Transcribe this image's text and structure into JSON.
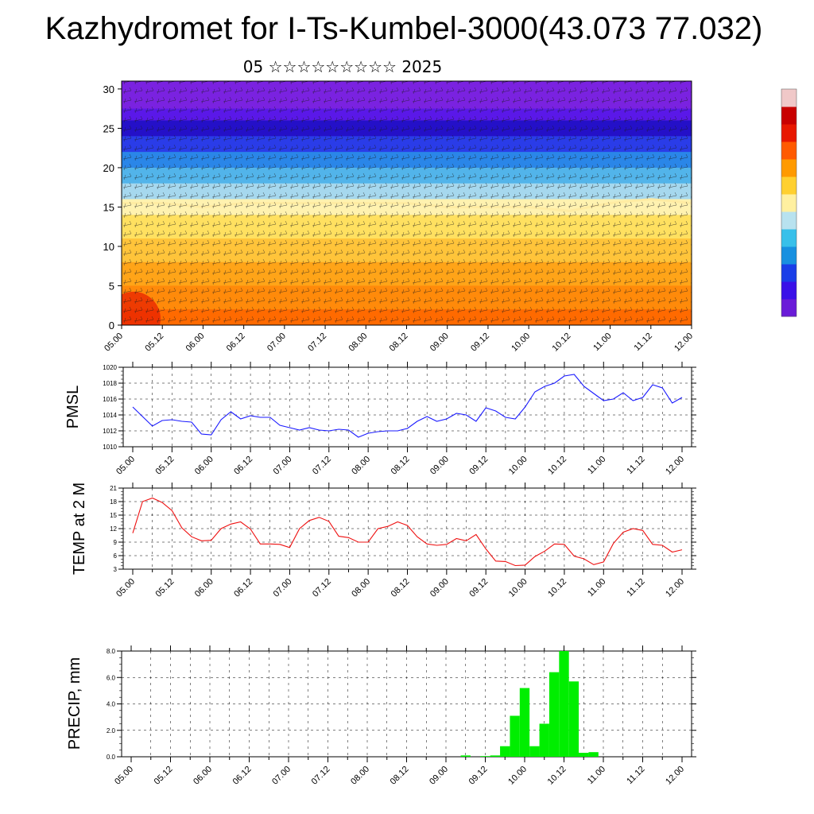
{
  "title": "Kazhydromet for I-Ts-Kumbel-3000(43.073 77.032)",
  "subtitle": "05 ☆☆☆☆☆☆☆☆☆ 2025",
  "time_labels": [
    "05.00",
    "05.12",
    "06.00",
    "06.12",
    "07.00",
    "07.12",
    "08.00",
    "08.12",
    "09.00",
    "09.12",
    "10.00",
    "10.12",
    "11.00",
    "11.12",
    "12.00"
  ],
  "colorbar": {
    "colors": [
      "#6a1bd8",
      "#3a10e8",
      "#1a3ee8",
      "#1890e0",
      "#38c0ea",
      "#b8e2ef",
      "#fff0a0",
      "#ffd030",
      "#ff9a00",
      "#ff5a00",
      "#e81800",
      "#c80000",
      "#f0c8c8"
    ]
  },
  "chart_data": [
    {
      "type": "heatmap",
      "title": "",
      "yticks": [
        0,
        5,
        10,
        15,
        20,
        25,
        30
      ],
      "ylim": [
        0,
        31
      ],
      "xlim": [
        0,
        168
      ],
      "x_tick_labels": [
        "05.00",
        "05.12",
        "06.00",
        "06.12",
        "07.00",
        "07.12",
        "08.00",
        "08.12",
        "09.00",
        "09.12",
        "10.00",
        "10.12",
        "11.00",
        "11.12",
        "12.00"
      ],
      "color_levels": [
        {
          "top": 31,
          "color": "#7a22e0"
        },
        {
          "top": 27.5,
          "color": "#5a18e8"
        },
        {
          "top": 26,
          "color": "#2410c8"
        },
        {
          "top": 24,
          "color": "#2a3ce8"
        },
        {
          "top": 22,
          "color": "#2a86e8"
        },
        {
          "top": 20,
          "color": "#52b4ea"
        },
        {
          "top": 18,
          "color": "#a6d8ee"
        },
        {
          "top": 16,
          "color": "#fff2b0"
        },
        {
          "top": 14,
          "color": "#ffe060"
        },
        {
          "top": 11,
          "color": "#ffc43a"
        },
        {
          "top": 8,
          "color": "#ffa418"
        },
        {
          "top": 5,
          "color": "#ff8a0a"
        },
        {
          "top": 2,
          "color": "#ff6a00"
        }
      ],
      "series": [
        {
          "values": [
            15.5,
            15.5,
            15.0,
            15.5,
            15.5,
            15.5,
            15.5,
            15.5,
            15.0,
            15.0,
            15.0,
            14.5,
            15.5,
            16.0,
            15.5
          ]
        }
      ]
    },
    {
      "type": "line",
      "ylabel": "PMSL",
      "ylim": [
        1010,
        1020
      ],
      "yticks": [
        1010,
        1012,
        1014,
        1016,
        1018,
        1020
      ],
      "color": "#1a1aff",
      "series": [
        {
          "values": [
            1015.0,
            1013.8,
            1012.6,
            1013.3,
            1013.4,
            1013.2,
            1013.1,
            1011.6,
            1011.5,
            1013.4,
            1014.4,
            1013.5,
            1013.9,
            1013.7,
            1013.7,
            1012.7,
            1012.4,
            1012.1,
            1012.4,
            1012.1,
            1012.0,
            1012.2,
            1012.1,
            1011.2,
            1011.7,
            1011.9,
            1012.0,
            1012.0,
            1012.3,
            1013.2,
            1013.8,
            1013.2,
            1013.5,
            1014.2,
            1014.0,
            1013.2,
            1014.9,
            1014.5,
            1013.7,
            1013.5,
            1015.0,
            1016.9,
            1017.6,
            1018.0,
            1018.9,
            1019.1,
            1017.6,
            1016.7,
            1015.8,
            1016.0,
            1016.8,
            1015.8,
            1016.2,
            1017.8,
            1017.4,
            1015.5,
            1016.2
          ]
        }
      ]
    },
    {
      "type": "line",
      "ylabel": "TEMP at 2 M",
      "ylim": [
        3,
        21
      ],
      "yticks": [
        3,
        6,
        9,
        12,
        15,
        18,
        21
      ],
      "color": "#ee1111",
      "series": [
        {
          "values": [
            11.0,
            18.0,
            18.8,
            17.8,
            16.0,
            12.2,
            10.2,
            9.3,
            9.4,
            12.0,
            13.0,
            13.5,
            11.9,
            8.6,
            8.6,
            8.5,
            7.8,
            12.0,
            13.8,
            14.5,
            13.6,
            10.3,
            10.0,
            9.0,
            9.0,
            12.0,
            12.5,
            13.5,
            12.7,
            10.2,
            8.6,
            8.3,
            8.5,
            9.8,
            9.3,
            10.7,
            7.5,
            4.8,
            4.7,
            3.8,
            3.9,
            5.8,
            7.0,
            8.6,
            8.5,
            5.9,
            5.3,
            4.0,
            4.6,
            8.7,
            11.2,
            12.0,
            11.6,
            8.5,
            8.3,
            6.8,
            7.3
          ]
        }
      ]
    },
    {
      "type": "bar",
      "ylabel": "PRECIP, mm",
      "ylim": [
        0,
        8
      ],
      "yticks": [
        "0.0",
        "2.0",
        "4.0",
        "6.0",
        "8.0"
      ],
      "color": "#00ee00",
      "values": [
        0,
        0,
        0,
        0,
        0,
        0,
        0,
        0,
        0,
        0,
        0,
        0,
        0,
        0,
        0,
        0,
        0,
        0,
        0,
        0,
        0,
        0,
        0,
        0,
        0,
        0,
        0,
        0,
        0,
        0,
        0,
        0,
        0,
        0,
        0.1,
        0,
        0.05,
        0.1,
        0.8,
        3.1,
        5.2,
        0.8,
        2.5,
        6.4,
        8.0,
        5.7,
        0.3,
        0.35,
        0,
        0,
        0,
        0,
        0,
        0,
        0,
        0,
        0
      ]
    }
  ]
}
